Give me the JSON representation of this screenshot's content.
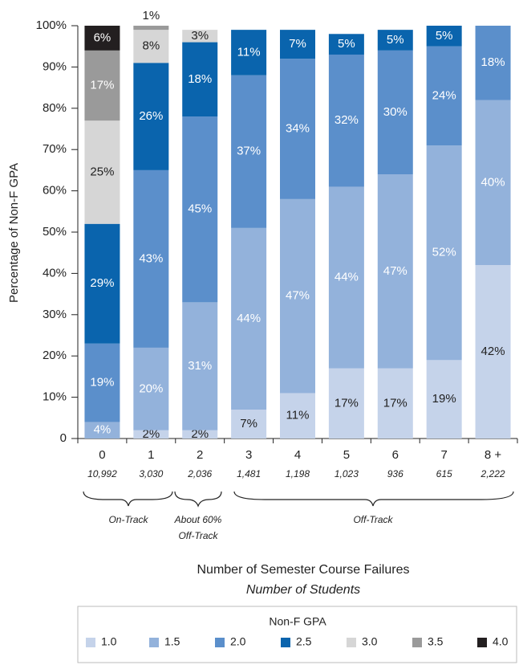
{
  "chart_data": {
    "type": "stacked_bar",
    "y_label": "Percentage of Non-F GPA",
    "x_label": "Number of Semester Course Failures",
    "x_sublabel": "Number of Students",
    "legend_title": "Non-F GPA",
    "categories": [
      "0",
      "1",
      "2",
      "3",
      "4",
      "5",
      "6",
      "7",
      "8 +"
    ],
    "category_sublabels": [
      "10,992",
      "3,030",
      "2,036",
      "1,481",
      "1,198",
      "1,023",
      "936",
      "615",
      "2,222"
    ],
    "ylim": [
      0,
      100
    ],
    "yticks": [
      0,
      {
        "value": 10,
        "label": "10%"
      },
      {
        "value": 20,
        "label": "20%"
      },
      {
        "value": 30,
        "label": "30%"
      },
      {
        "value": 40,
        "label": "40%"
      },
      {
        "value": 50,
        "label": "50%"
      },
      {
        "value": 60,
        "label": "60%"
      },
      {
        "value": 70,
        "label": "70%"
      },
      {
        "value": 80,
        "label": "80%"
      },
      {
        "value": 90,
        "label": "90%"
      },
      {
        "value": 100,
        "label": "100%"
      }
    ],
    "series": [
      {
        "name": "1.0",
        "color": "#c5d3ea",
        "label_color": "#222222",
        "values": [
          0,
          2,
          2,
          7,
          11,
          17,
          17,
          19,
          42
        ],
        "value_labels": [
          null,
          "2%",
          "2%",
          "7%",
          "11%",
          "17%",
          "17%",
          "19%",
          "42%"
        ]
      },
      {
        "name": "1.5",
        "color": "#93b2db",
        "label_color": "#ffffff",
        "values": [
          4,
          20,
          31,
          44,
          47,
          44,
          47,
          52,
          40
        ],
        "value_labels": [
          "4%",
          "20%",
          "31%",
          "44%",
          "47%",
          "44%",
          "47%",
          "52%",
          "40%"
        ]
      },
      {
        "name": "2.0",
        "color": "#5b8fcb",
        "label_color": "#ffffff",
        "values": [
          19,
          43,
          45,
          37,
          34,
          32,
          30,
          24,
          18
        ],
        "value_labels": [
          "19%",
          "43%",
          "45%",
          "37%",
          "34%",
          "32%",
          "30%",
          "24%",
          "18%"
        ]
      },
      {
        "name": "2.5",
        "color": "#0a64ad",
        "label_color": "#ffffff",
        "values": [
          29,
          26,
          18,
          11,
          7,
          5,
          5,
          5,
          0
        ],
        "value_labels": [
          "29%",
          "26%",
          "18%",
          "11%",
          "7%",
          "5%",
          "5%",
          "5%",
          null
        ]
      },
      {
        "name": "3.0",
        "color": "#d6d6d6",
        "label_color": "#222222",
        "values": [
          25,
          8,
          3,
          0,
          0,
          0,
          0,
          0,
          0
        ],
        "value_labels": [
          "25%",
          "8%",
          "3%",
          null,
          null,
          null,
          null,
          null,
          null
        ]
      },
      {
        "name": "3.5",
        "color": "#9a9a9a",
        "label_color": "#ffffff",
        "values": [
          17,
          1,
          0,
          0,
          0,
          0,
          0,
          0,
          0
        ],
        "value_labels": [
          "17%",
          "1%",
          null,
          null,
          null,
          null,
          null,
          null,
          null
        ]
      },
      {
        "name": "4.0",
        "color": "#231f20",
        "label_color": "#ffffff",
        "values": [
          6,
          0,
          0,
          0,
          0,
          0,
          0,
          0,
          0
        ],
        "value_labels": [
          "6%",
          null,
          null,
          null,
          null,
          null,
          null,
          null,
          null
        ]
      }
    ],
    "annotations": [
      {
        "lines": [
          "On-Track"
        ]
      },
      {
        "lines": [
          "About 60%",
          "Off-Track"
        ]
      },
      {
        "lines": [
          "Off-Track"
        ]
      }
    ]
  }
}
